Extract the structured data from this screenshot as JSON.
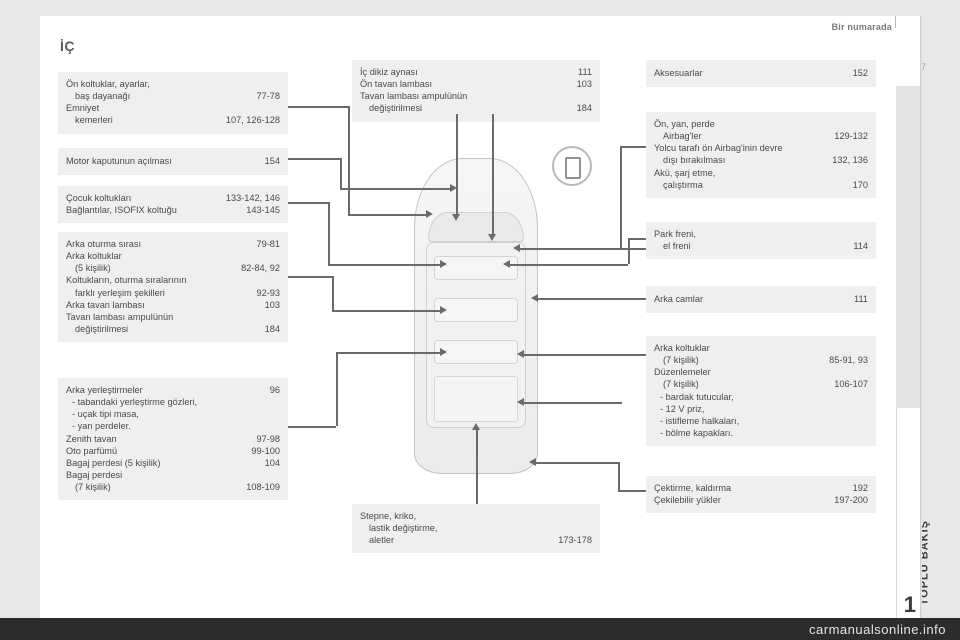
{
  "colors": {
    "box_bg": "#efefef",
    "text": "#4a4a4a",
    "line": "#6b6b6b",
    "page_bg": "#ffffff",
    "body_bg": "#e8e8e8",
    "tab_bg": "#e3e3e3"
  },
  "header_right": "Bir numarada",
  "title": "İÇ",
  "page_number": "7",
  "tab": {
    "label": "TOPLU BAKIŞ",
    "number": "1"
  },
  "left_boxes": {
    "b1": [
      {
        "l": "Ön koltuklar, ayarlar,",
        "r": ""
      },
      {
        "l": "baş dayanağı",
        "r": "77-78",
        "indent": true
      },
      {
        "l": "Emniyet",
        "r": ""
      },
      {
        "l": "kemerleri",
        "r": "107, 126-128",
        "indent": true
      }
    ],
    "b2": [
      {
        "l": "Motor kaputunun açılması",
        "r": "154"
      }
    ],
    "b3": [
      {
        "l": "Çocuk koltukları",
        "r": "133-142, 146"
      },
      {
        "l": "Bağlantılar, ISOFIX koltuğu",
        "r": "143-145"
      }
    ],
    "b4": [
      {
        "l": "Arka oturma sırası",
        "r": "79-81"
      },
      {
        "l": "Arka koltuklar",
        "r": ""
      },
      {
        "l": "(5 kişilik)",
        "r": "82-84, 92",
        "indent": true
      },
      {
        "l": "Koltukların, oturma sıralarının",
        "r": ""
      },
      {
        "l": "farklı yerleşim şekilleri",
        "r": "92-93",
        "indent": true
      },
      {
        "l": "Arka tavan lambası",
        "r": "103"
      },
      {
        "l": "Tavan lambası ampulünün",
        "r": ""
      },
      {
        "l": "değiştirilmesi",
        "r": "184",
        "indent": true
      }
    ],
    "b5": [
      {
        "l": "Arka yerleştirmeler",
        "r": "96"
      },
      {
        "l": "-  tabandaki yerleştirme gözleri,",
        "r": "",
        "bullet": true
      },
      {
        "l": "-  uçak tipi masa,",
        "r": "",
        "bullet": true
      },
      {
        "l": "-  yan perdeler.",
        "r": "",
        "bullet": true
      },
      {
        "l": "Zenith tavan",
        "r": "97-98"
      },
      {
        "l": "Oto parfümü",
        "r": "99-100"
      },
      {
        "l": "Bagaj perdesi (5 kişilik)",
        "r": "104"
      },
      {
        "l": "Bagaj perdesi",
        "r": ""
      },
      {
        "l": "(7 kişilik)",
        "r": "108-109",
        "indent": true
      }
    ]
  },
  "right_boxes": {
    "b0": [
      {
        "l": "Aksesuarlar",
        "r": "152"
      }
    ],
    "b1": [
      {
        "l": "Ön, yan, perde",
        "r": ""
      },
      {
        "l": "Airbag'ler",
        "r": "129-132",
        "indent": true
      },
      {
        "l": "Yolcu tarafı ön Airbag'inin devre",
        "r": ""
      },
      {
        "l": "dışı bırakılması",
        "r": "132, 136",
        "indent": true
      },
      {
        "l": "Akü, şarj etme,",
        "r": ""
      },
      {
        "l": "çalıştırma",
        "r": "170",
        "indent": true
      }
    ],
    "b2": [
      {
        "l": "Park freni,",
        "r": ""
      },
      {
        "l": "el freni",
        "r": "114",
        "indent": true
      }
    ],
    "b3": [
      {
        "l": "Arka camlar",
        "r": "111"
      }
    ],
    "b4": [
      {
        "l": "Arka koltuklar",
        "r": ""
      },
      {
        "l": "(7 kişilik)",
        "r": "85-91, 93",
        "indent": true
      },
      {
        "l": "Düzenlemeler",
        "r": ""
      },
      {
        "l": "(7 kişilik)",
        "r": "106-107",
        "indent": true
      },
      {
        "l": "-  bardak tutucular,",
        "r": "",
        "bullet": true
      },
      {
        "l": "-  12 V priz,",
        "r": "",
        "bullet": true
      },
      {
        "l": "-  istifleme halkaları,",
        "r": "",
        "bullet": true
      },
      {
        "l": "-  bölme kapakları.",
        "r": "",
        "bullet": true
      }
    ],
    "b5": [
      {
        "l": "Çektirme, kaldırma",
        "r": "192"
      },
      {
        "l": "Çekilebilir yükler",
        "r": "197-200"
      }
    ]
  },
  "top_box": [
    {
      "l": "İç dikiz aynası",
      "r": "111"
    },
    {
      "l": "Ön tavan lambası",
      "r": "103"
    },
    {
      "l": "Tavan lambası ampulünün",
      "r": ""
    },
    {
      "l": "değiştirilmesi",
      "r": "184",
      "indent": true
    }
  ],
  "bottom_box": [
    {
      "l": "Stepne, kriko,",
      "r": ""
    },
    {
      "l": "lastik değiştirme,",
      "r": "",
      "indent": true
    },
    {
      "l": "aletler",
      "r": "173-178",
      "indent": true
    }
  ],
  "footer": "carmanualsonline.info"
}
